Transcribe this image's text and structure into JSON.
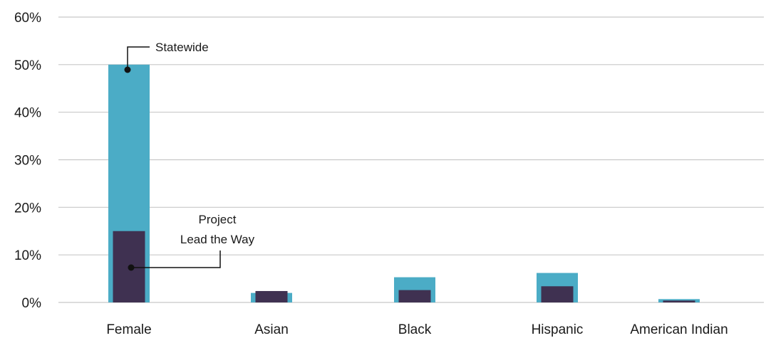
{
  "chart_data": {
    "type": "bar",
    "categories": [
      "Female",
      "Asian",
      "Black",
      "Hispanic",
      "American Indian"
    ],
    "series": [
      {
        "name": "Statewide",
        "values": [
          50,
          2,
          5.3,
          6.2,
          0.7
        ]
      },
      {
        "name": "Project Lead the Way",
        "values": [
          15,
          2.4,
          2.6,
          3.4,
          0.4
        ]
      }
    ],
    "y_ticks": [
      "0%",
      "10%",
      "20%",
      "30%",
      "40%",
      "50%",
      "60%"
    ],
    "ylim": [
      0,
      60
    ],
    "grid": true,
    "annotations": [
      {
        "text": "Statewide",
        "series": "Statewide"
      },
      {
        "text_lines": [
          "Project",
          "Lead the Way"
        ],
        "series": "Project Lead the Way"
      }
    ]
  },
  "colors": {
    "statewide": "#4bacc6",
    "project_lead_the_way": "#3f3151",
    "gridline": "#c8c8c8",
    "text": "#1a1a1a"
  }
}
